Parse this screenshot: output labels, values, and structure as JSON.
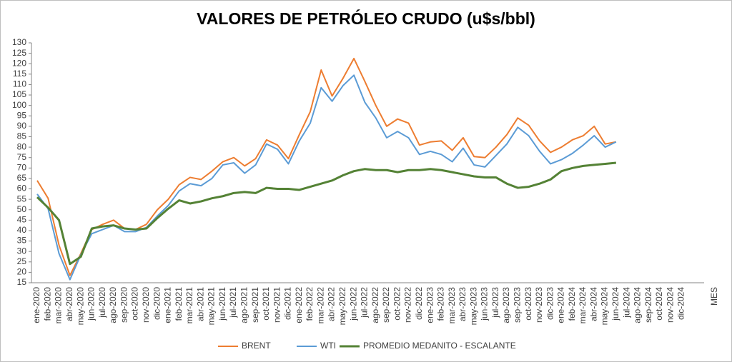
{
  "chart_data": {
    "type": "line",
    "title": "VALORES DE PETRÓLEO CRUDO (u$s/bbl)",
    "x_label": "MES",
    "categories": [
      "ene-2020",
      "feb-2020",
      "mar-2020",
      "abr-2020",
      "may-2020",
      "jun-2020",
      "jul-2020",
      "ago-2020",
      "sep-2020",
      "oct-2020",
      "nov-2020",
      "dic-2020",
      "ene-2021",
      "feb-2021",
      "mar-2021",
      "abr-2021",
      "may-2021",
      "jun-2021",
      "jul-2021",
      "ago-2021",
      "sep-2021",
      "oct-2021",
      "nov-2021",
      "dic-2021",
      "ene-2022",
      "feb-2022",
      "mar-2022",
      "abr-2022",
      "may-2022",
      "jun-2022",
      "jul-2022",
      "ago-2022",
      "sep-2022",
      "oct-2022",
      "nov-2022",
      "dic-2022",
      "ene-2023",
      "feb-2023",
      "mar-2023",
      "abr-2023",
      "may-2023",
      "jun-2023",
      "jul-2023",
      "ago-2023",
      "sep-2023",
      "oct-2023",
      "nov-2023",
      "dic-2023",
      "ene-2024",
      "feb-2024",
      "mar-2024",
      "abr-2024",
      "may-2024",
      "jun-2024",
      "jul-2024",
      "ago-2024",
      "sep-2024",
      "oct-2024",
      "nov-2024",
      "dic-2024"
    ],
    "series": [
      {
        "name": "BRENT",
        "color": "#ED7D31",
        "width": 2,
        "values": [
          64,
          55.5,
          33,
          18.5,
          29,
          40.5,
          43,
          45,
          41,
          40.5,
          43,
          50,
          55,
          62,
          65.5,
          64.5,
          68.5,
          73,
          75,
          71,
          74.5,
          83.5,
          81,
          74.5,
          86,
          97,
          117,
          104.5,
          113,
          122.5,
          111.5,
          100,
          90,
          93.5,
          91.5,
          81,
          82.5,
          83,
          78.5,
          84.5,
          75.5,
          75,
          80,
          86,
          94,
          90.5,
          83,
          77.5,
          80,
          83.5,
          85.5,
          90,
          81.5,
          82.5,
          null,
          null,
          null,
          null,
          null,
          null
        ]
      },
      {
        "name": "WTI",
        "color": "#5B9BD5",
        "width": 2,
        "values": [
          57.5,
          50.5,
          29,
          16.5,
          28.5,
          38.5,
          40.5,
          42.5,
          39.5,
          39.5,
          41.5,
          47,
          52,
          59,
          62.5,
          61.5,
          65,
          71.5,
          72.5,
          67.5,
          71.5,
          81.5,
          79,
          72,
          83,
          91.5,
          108.5,
          102,
          109.5,
          114.5,
          101.5,
          94,
          84.5,
          87.5,
          84.5,
          76.5,
          78,
          76.5,
          73,
          79.5,
          71.5,
          70.5,
          76,
          81.5,
          89.5,
          85.5,
          78,
          72,
          74,
          77,
          81,
          85.5,
          80,
          82.5,
          null,
          null,
          null,
          null,
          null,
          null
        ]
      },
      {
        "name": "PROMEDIO MEDANITO - ESCALANTE",
        "color": "#548235",
        "width": 3,
        "values": [
          56,
          51,
          45,
          24,
          27.5,
          41,
          42,
          42.5,
          41,
          40.5,
          41,
          46,
          50.5,
          54.5,
          53,
          54,
          55.5,
          56.5,
          58,
          58.5,
          58,
          60.5,
          60,
          60,
          59.5,
          61,
          62.5,
          64,
          66.5,
          68.5,
          69.5,
          69,
          69,
          68,
          69,
          69,
          69.5,
          69,
          68,
          67,
          66,
          65.5,
          65.5,
          62.5,
          60.5,
          61,
          62.5,
          64.5,
          68.5,
          70,
          71,
          71.5,
          72,
          72.5,
          null,
          null,
          null,
          null,
          null,
          null
        ]
      }
    ],
    "ylim": [
      15,
      130
    ],
    "yticks": [
      15,
      20,
      25,
      30,
      35,
      40,
      45,
      50,
      55,
      60,
      65,
      70,
      75,
      80,
      85,
      90,
      95,
      100,
      105,
      110,
      115,
      120,
      125,
      130
    ],
    "legend": "bottom"
  }
}
